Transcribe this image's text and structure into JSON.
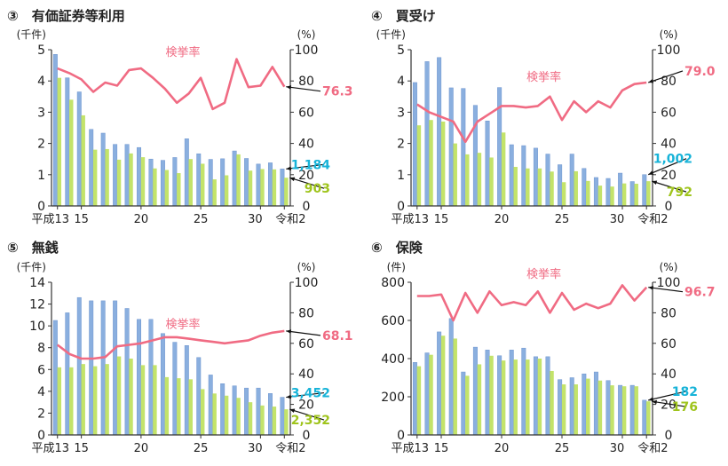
{
  "x_ticks": [
    "平成13",
    "15",
    "20",
    "25",
    "30",
    "令和2"
  ],
  "colors": {
    "cleared": "#8aafdf",
    "arrested": "#c3e36a",
    "rate": "#f06b83",
    "cleared_label": "#17b3d8",
    "arrested_label": "#9fc41c",
    "rate_label": "#f06b83"
  },
  "chart_data": [
    {
      "type": "bar",
      "title": "③　有価証券等利用",
      "y_left_label": "(千件)",
      "y_right_label": "(%)",
      "y_left_ticks": [
        "0",
        "1",
        "2",
        "3",
        "4",
        "5"
      ],
      "y_right_ticks": [
        "0",
        "20",
        "40",
        "60",
        "80",
        "100"
      ],
      "ylim_left": [
        0,
        5
      ],
      "ylim_right": [
        0,
        100
      ],
      "x": [
        13,
        14,
        15,
        16,
        17,
        18,
        19,
        20,
        21,
        22,
        23,
        24,
        25,
        26,
        27,
        28,
        29,
        30,
        31,
        32
      ],
      "bars_a": [
        4.85,
        4.1,
        3.65,
        2.45,
        2.33,
        1.97,
        1.97,
        1.87,
        1.5,
        1.46,
        1.55,
        2.15,
        1.67,
        1.49,
        1.51,
        1.76,
        1.52,
        1.34,
        1.38,
        1.184
      ],
      "bars_b": [
        4.1,
        3.4,
        2.9,
        1.8,
        1.82,
        1.48,
        1.68,
        1.56,
        1.2,
        1.15,
        1.05,
        1.5,
        1.35,
        0.85,
        0.98,
        1.65,
        1.13,
        1.18,
        1.17,
        0.903
      ],
      "rate": [
        88,
        85,
        81,
        73,
        79,
        77,
        87,
        88,
        82,
        75,
        66,
        72,
        82,
        62,
        66,
        94,
        76,
        77,
        89,
        76.3
      ],
      "rate_series_name": "検挙率",
      "end_labels": {
        "rate": "76.3",
        "a": "1,184",
        "b": "903"
      }
    },
    {
      "type": "bar",
      "title": "④　買受け",
      "y_left_label": "(千件)",
      "y_right_label": "(%)",
      "y_left_ticks": [
        "0",
        "1",
        "2",
        "3",
        "4",
        "5"
      ],
      "y_right_ticks": [
        "0",
        "20",
        "40",
        "60",
        "80",
        "100"
      ],
      "ylim_left": [
        0,
        5
      ],
      "ylim_right": [
        0,
        100
      ],
      "x": [
        13,
        14,
        15,
        16,
        17,
        18,
        19,
        20,
        21,
        22,
        23,
        24,
        25,
        26,
        27,
        28,
        29,
        30,
        31,
        32
      ],
      "bars_a": [
        3.95,
        4.62,
        4.75,
        3.78,
        3.76,
        3.22,
        2.72,
        3.79,
        1.96,
        1.93,
        1.85,
        1.66,
        1.32,
        1.66,
        1.2,
        0.91,
        0.88,
        1.05,
        0.78,
        1.002
      ],
      "bars_b": [
        2.58,
        2.75,
        2.7,
        2.0,
        1.65,
        1.7,
        1.55,
        2.35,
        1.25,
        1.2,
        1.2,
        1.1,
        0.76,
        1.11,
        0.8,
        0.65,
        0.62,
        0.72,
        0.71,
        0.792
      ],
      "rate": [
        65,
        60,
        57,
        54,
        41,
        54,
        59,
        64,
        64,
        63,
        64,
        70,
        55,
        67,
        60,
        67,
        63,
        74,
        78,
        79.0
      ],
      "rate_series_name": "検挙率",
      "end_labels": {
        "rate": "79.0",
        "a": "1,002",
        "b": "792"
      }
    },
    {
      "type": "bar",
      "title": "⑤　無銭",
      "y_left_label": "(千件)",
      "y_right_label": "(%)",
      "y_left_ticks": [
        "0",
        "2",
        "4",
        "6",
        "8",
        "10",
        "12",
        "14"
      ],
      "y_right_ticks": [
        "0",
        "20",
        "40",
        "60",
        "80",
        "100"
      ],
      "ylim_left": [
        0,
        14
      ],
      "ylim_right": [
        0,
        100
      ],
      "x": [
        13,
        14,
        15,
        16,
        17,
        18,
        19,
        20,
        21,
        22,
        23,
        24,
        25,
        26,
        27,
        28,
        29,
        30,
        31,
        32
      ],
      "bars_a": [
        10.5,
        11.2,
        12.6,
        12.3,
        12.3,
        12.3,
        11.6,
        10.6,
        10.6,
        9.3,
        8.5,
        8.2,
        7.1,
        5.5,
        4.7,
        4.5,
        4.3,
        4.3,
        3.8,
        3.452
      ],
      "bars_b": [
        6.2,
        6.2,
        6.5,
        6.3,
        6.5,
        7.2,
        7.0,
        6.4,
        6.4,
        5.3,
        5.2,
        5.1,
        4.2,
        3.8,
        3.6,
        3.4,
        3.0,
        2.7,
        2.6,
        2.352
      ],
      "rate": [
        59,
        53,
        50,
        50,
        51,
        58,
        59,
        60,
        62,
        64,
        64,
        63,
        62,
        61,
        60,
        61,
        62,
        65,
        67,
        68.1
      ],
      "rate_series_name": "検挙率",
      "end_labels": {
        "rate": "68.1",
        "a": "3,452",
        "b": "2,352"
      }
    },
    {
      "type": "bar",
      "title": "⑥　保険",
      "y_left_label": "(件)",
      "y_right_label": "(%)",
      "y_left_ticks": [
        "0",
        "200",
        "400",
        "600",
        "800"
      ],
      "y_right_ticks": [
        "0",
        "20",
        "40",
        "60",
        "80",
        "100"
      ],
      "ylim_left": [
        0,
        800
      ],
      "ylim_right": [
        0,
        100
      ],
      "x": [
        13,
        14,
        15,
        16,
        17,
        18,
        19,
        20,
        21,
        22,
        23,
        24,
        25,
        26,
        27,
        28,
        29,
        30,
        31,
        32
      ],
      "bars_a": [
        380,
        430,
        540,
        610,
        330,
        460,
        445,
        415,
        445,
        455,
        410,
        410,
        290,
        300,
        320,
        330,
        285,
        260,
        260,
        182
      ],
      "bars_b": [
        360,
        420,
        520,
        505,
        310,
        370,
        415,
        390,
        395,
        395,
        400,
        335,
        265,
        265,
        295,
        285,
        260,
        255,
        255,
        176
      ],
      "rate": [
        91,
        91,
        92,
        75,
        93,
        80,
        94,
        85,
        87,
        85,
        94,
        80,
        93,
        82,
        86,
        83,
        86,
        98,
        88,
        96.7
      ],
      "rate_series_name": "検挙率",
      "end_labels": {
        "rate": "96.7",
        "a": "182",
        "b": "176"
      }
    }
  ]
}
